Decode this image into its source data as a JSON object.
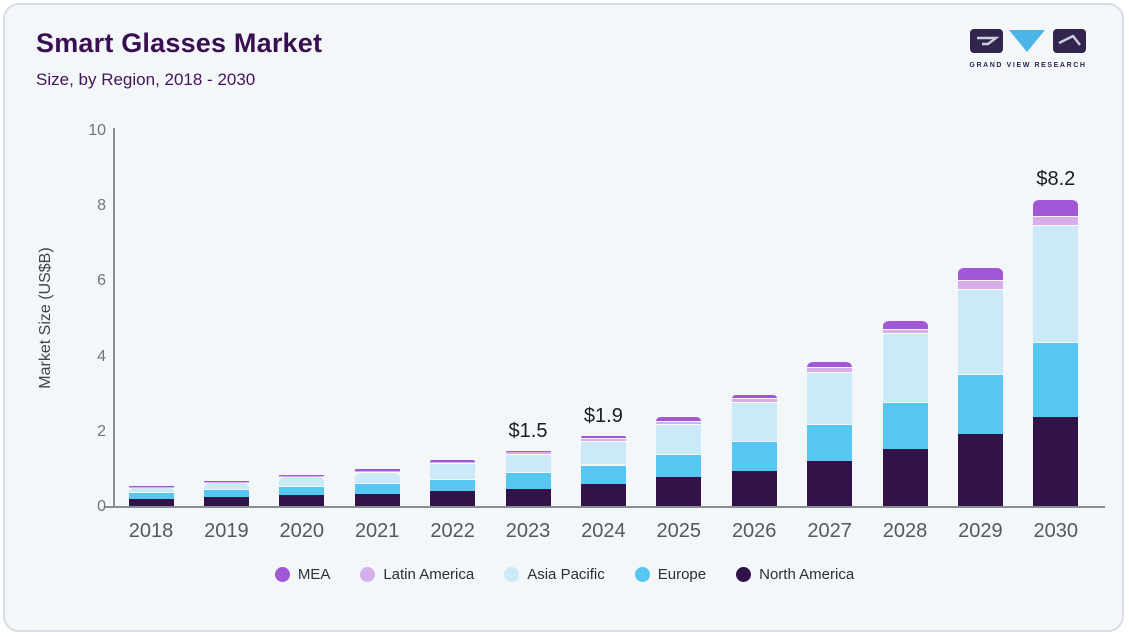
{
  "page": {
    "card_background": "#f4f7fa",
    "card_border": "#d7dce6",
    "axis_color": "#888c94",
    "tick_label_color": "#70757e",
    "x_label_color": "#54575d",
    "annotation_color": "#1a1a21",
    "heading_color": "#3a0f52"
  },
  "header": {
    "title": "Smart Glasses Market",
    "subtitle": "Size, by Region, 2018 - 2030",
    "logo": {
      "text": "GRAND VIEW RESEARCH",
      "dark_color": "#32254d",
      "blue_color": "#4ab5e6"
    }
  },
  "chart_data": {
    "type": "bar",
    "stacked": true,
    "title": "Smart Glasses Market",
    "subtitle": "Size, by Region, 2018 - 2030",
    "xlabel": "",
    "ylabel": "Market Size (US$B)",
    "ylim": [
      0,
      10
    ],
    "yticks": [
      0,
      2,
      4,
      6,
      8,
      10
    ],
    "grid": false,
    "legend_position": "bottom",
    "categories": [
      "2018",
      "2019",
      "2020",
      "2021",
      "2022",
      "2023",
      "2024",
      "2025",
      "2026",
      "2027",
      "2028",
      "2029",
      "2030"
    ],
    "series": [
      {
        "name": "North America",
        "color": "#321349",
        "values": [
          0.22,
          0.27,
          0.31,
          0.35,
          0.42,
          0.48,
          0.6,
          0.8,
          0.97,
          1.22,
          1.55,
          1.94,
          2.4
        ]
      },
      {
        "name": "Europe",
        "color": "#55c7f0",
        "values": [
          0.17,
          0.21,
          0.24,
          0.28,
          0.33,
          0.46,
          0.53,
          0.6,
          0.78,
          1.0,
          1.25,
          1.6,
          2.0
        ]
      },
      {
        "name": "Asia Pacific",
        "color": "#cbe9f8",
        "values": [
          0.14,
          0.18,
          0.27,
          0.31,
          0.42,
          0.48,
          0.62,
          0.82,
          1.05,
          1.38,
          1.82,
          2.26,
          3.1
        ]
      },
      {
        "name": "Latin America",
        "color": "#d5aeea",
        "values": [
          0.01,
          0.01,
          0.01,
          0.03,
          0.04,
          0.04,
          0.08,
          0.08,
          0.1,
          0.12,
          0.12,
          0.25,
          0.25
        ]
      },
      {
        "name": "MEA",
        "color": "#a257d6",
        "values": [
          0.01,
          0.01,
          0.01,
          0.03,
          0.04,
          0.04,
          0.07,
          0.12,
          0.1,
          0.15,
          0.23,
          0.32,
          0.45
        ]
      }
    ],
    "totals": [
      0.55,
      0.68,
      0.84,
      1.0,
      1.25,
      1.5,
      1.9,
      2.42,
      3.0,
      3.87,
      4.97,
      6.37,
      8.2
    ],
    "legend_order": [
      "MEA",
      "Latin America",
      "Asia Pacific",
      "Europe",
      "North America"
    ],
    "annotations": [
      {
        "category": "2023",
        "label": "$1.5"
      },
      {
        "category": "2024",
        "label": "$1.9"
      },
      {
        "category": "2030",
        "label": "$8.2"
      }
    ]
  }
}
